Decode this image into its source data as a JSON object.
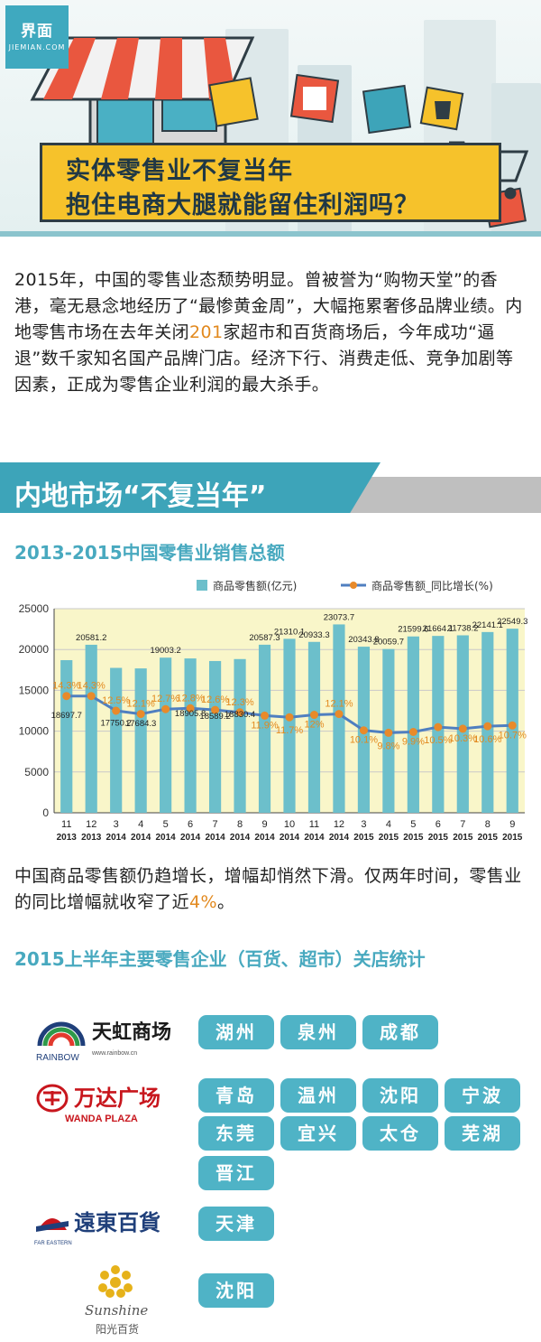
{
  "header": {
    "logo_text": "界面",
    "logo_sub": "JIEMIAN.COM",
    "title_line1": "实体零售业不复当年",
    "title_line2": "抱住电商大腿就能留住利润吗？"
  },
  "intro": {
    "before": "2015年，中国的零售业态颓势明显。曾被誉为“购物天堂”的香港，毫无悬念地经历了“最惨黄金周”，大幅拖累奢侈品牌业绩。内地零售市场在去年关闭",
    "highlight": "201",
    "after": "家超市和百货商场后，今年成功“逼退”数千家知名国产品牌门店。经济下行、消费走低、竞争加剧等因素，正成为零售企业利润的最大杀手。"
  },
  "section_banner": "内地市场“不复当年”",
  "chart_title": "2013-2015中国零售业销售总额",
  "chart_data": {
    "type": "bar",
    "title": "2013-2015中国零售业销售总额",
    "categories": [
      "11|2013",
      "12|2013",
      "3|2014",
      "4|2014",
      "5|2014",
      "6|2014",
      "7|2014",
      "8|2014",
      "9|2014",
      "10|2014",
      "11|2014",
      "12|2014",
      "3|2015",
      "4|2015",
      "5|2015",
      "6|2015",
      "7|2015",
      "8|2015",
      "9|2015"
    ],
    "series": [
      {
        "name": "商品零售额(亿元)",
        "kind": "bar",
        "values": [
          18697.7,
          20581.2,
          17750.2,
          17684.3,
          19003.2,
          18905.8,
          18589.2,
          18830.4,
          20587.3,
          21310.1,
          20933.3,
          23073.7,
          20343.8,
          20059.7,
          21599.6,
          21664.1,
          21738.2,
          22141.1,
          22549.3
        ],
        "labels": [
          "18697.7",
          "20581.2",
          "17750.2",
          "17684.3",
          "19003.2",
          "18905.8",
          "18589.2",
          "18830.4",
          "20587.3",
          "21310.1",
          "20933.3",
          "23073.7",
          "20343.8",
          "20059.7",
          "21599.6",
          "21664.1",
          "21738.2",
          "22141.1",
          "22549.3"
        ]
      },
      {
        "name": "商品零售额_同比增长(%)",
        "kind": "line",
        "values": [
          14.3,
          14.3,
          12.5,
          12.1,
          12.7,
          12.8,
          12.6,
          12.3,
          11.9,
          11.7,
          12,
          12.1,
          10.1,
          9.8,
          9.9,
          10.5,
          10.3,
          10.6,
          10.7
        ],
        "labels": [
          "14.3%",
          "14.3%",
          "12.5%",
          "12.1%",
          "12.7%",
          "12.8%",
          "12.6%",
          "12.3%",
          "11.9%",
          "11.7%",
          "12%",
          "12.1%",
          "10.1%",
          "9.8%",
          "9.9%",
          "10.5%",
          "10.3%",
          "10.6%",
          "10.7%"
        ]
      }
    ],
    "y_ticks": [
      "25000",
      "20000",
      "15000",
      "10000",
      "5000",
      "0"
    ],
    "ylim": [
      0,
      25000
    ],
    "grid": true,
    "legend_position": "top-right",
    "colors": {
      "bar": "#6cbfcb",
      "line": "#4f7fc0",
      "marker": "#e88a2a",
      "label": "#e2891e",
      "plot_bg": "#f9f6c9"
    }
  },
  "summary": {
    "before": "中国商品零售额仍趋增长，增幅却悄然下滑。仅两年时间，零售业的同比增幅就收窄了近",
    "highlight": "4%",
    "after": "。"
  },
  "closures_title": "2015上半年主要零售企业（百货、超市）关店统计",
  "closures": [
    {
      "brand": "天虹商场",
      "brand_en": "RAINBOW",
      "brand_url": "www.rainbow.cn",
      "cities": [
        "湖州",
        "泉州",
        "成都"
      ]
    },
    {
      "brand": "万达广场",
      "brand_en": "WANDA PLAZA",
      "cities": [
        "青岛",
        "温州",
        "沈阳",
        "宁波",
        "东莞",
        "宜兴",
        "太仓",
        "芜湖",
        "晋江"
      ]
    },
    {
      "brand": "遠東百貨",
      "brand_en": "FAR EASTERN",
      "cities": [
        "天津"
      ]
    },
    {
      "brand": "阳光百货",
      "brand_en": "Sunshine",
      "cities": [
        "沈阳"
      ]
    }
  ]
}
